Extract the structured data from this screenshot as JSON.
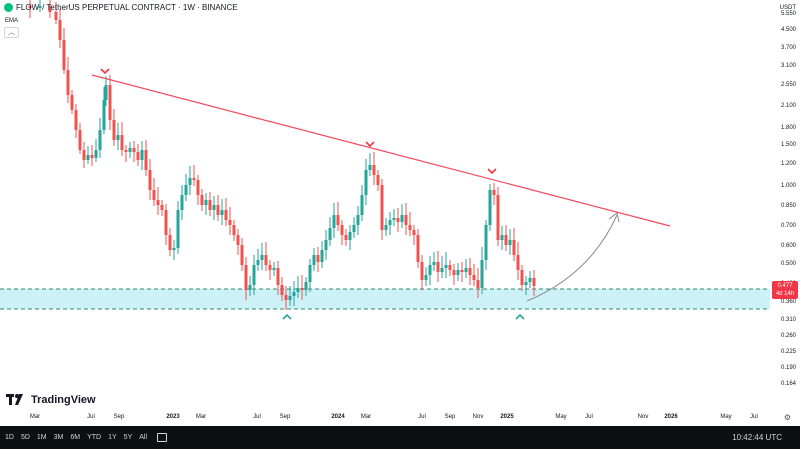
{
  "header": {
    "symbol": "FLOW",
    "title_rest": "/ TetherUS PERPETUAL CONTRACT · 1W · BINANCE",
    "indicator": "EMA",
    "collapse_icon": "chevron-up-icon"
  },
  "price_axis": {
    "currency": "USDT",
    "labels": [
      "5.550",
      "4.500",
      "3.700",
      "3.100",
      "2.550",
      "2.100",
      "1.800",
      "1.500",
      "1.200",
      "1.000",
      "0.850",
      "0.700",
      "0.600",
      "0.500",
      "0.420",
      "0.360",
      "0.310",
      "0.260",
      "0.225",
      "0.190",
      "0.164"
    ],
    "last_price": "0.477",
    "countdown": "4d 14h"
  },
  "time_axis": {
    "labels": [
      {
        "text": "Mar",
        "bold": false
      },
      {
        "text": "Jul",
        "bold": false
      },
      {
        "text": "Sep",
        "bold": false
      },
      {
        "text": "2023",
        "bold": true
      },
      {
        "text": "Mar",
        "bold": false
      },
      {
        "text": "Jul",
        "bold": false
      },
      {
        "text": "Sep",
        "bold": false
      },
      {
        "text": "2024",
        "bold": true
      },
      {
        "text": "Mar",
        "bold": false
      },
      {
        "text": "Jul",
        "bold": false
      },
      {
        "text": "Sep",
        "bold": false
      },
      {
        "text": "Nov",
        "bold": false
      },
      {
        "text": "2025",
        "bold": true
      },
      {
        "text": "May",
        "bold": false
      },
      {
        "text": "Jul",
        "bold": false
      },
      {
        "text": "Nov",
        "bold": false
      },
      {
        "text": "2026",
        "bold": true
      },
      {
        "text": "May",
        "bold": false
      },
      {
        "text": "Jul",
        "bold": false
      }
    ],
    "settings_icon": "gear-icon"
  },
  "branding": {
    "name": "TradingView"
  },
  "bottom_bar": {
    "timeframes": [
      "1D",
      "5D",
      "1M",
      "3M",
      "6M",
      "YTD",
      "1Y",
      "5Y",
      "All"
    ],
    "calendar_icon": "calendar-icon",
    "clock": "10:42:44 UTC"
  },
  "colors": {
    "up": "#26a69a",
    "down": "#ef5350",
    "trendline": "#f2475b",
    "support_zone": "#ccf1f7",
    "support_line": "#2e8b6a",
    "marker": "#f23645",
    "marker_up": "#26a69a",
    "arrow": "#8a8a8a"
  }
}
